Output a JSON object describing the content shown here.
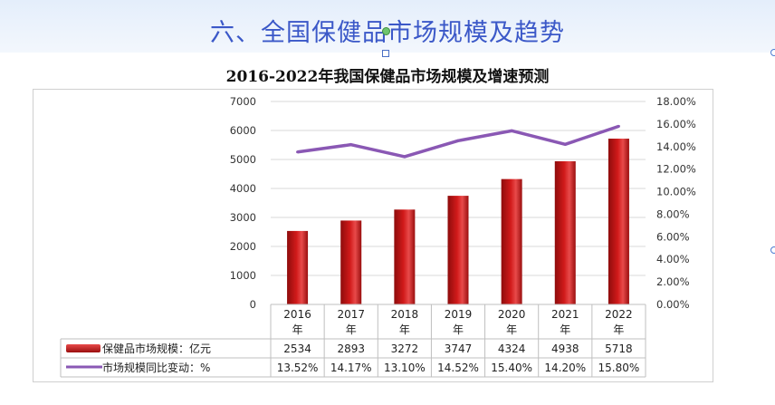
{
  "slide": {
    "title": "六、全国保健品市场规模及趋势"
  },
  "chart_data": {
    "type": "bar",
    "title": "2016-2022年我国保健品市场规模及增速预测",
    "categories": [
      "2016年",
      "2017年",
      "2018年",
      "2019年",
      "2020年",
      "2021年",
      "2022年"
    ],
    "category_lines": [
      [
        "2016",
        "年"
      ],
      [
        "2017",
        "年"
      ],
      [
        "2018",
        "年"
      ],
      [
        "2019",
        "年"
      ],
      [
        "2020",
        "年"
      ],
      [
        "2021",
        "年"
      ],
      [
        "2022",
        "年"
      ]
    ],
    "y_left": {
      "ylim": [
        0,
        7000
      ],
      "ticks": [
        "0",
        "1000",
        "2000",
        "3000",
        "4000",
        "5000",
        "6000",
        "7000"
      ]
    },
    "y_right": {
      "ylim": [
        0,
        18
      ],
      "ticks": [
        "0.00%",
        "2.00%",
        "4.00%",
        "6.00%",
        "8.00%",
        "10.00%",
        "12.00%",
        "14.00%",
        "16.00%",
        "18.00%"
      ]
    },
    "series": [
      {
        "name": "保健品市场规模：亿元",
        "type": "bar",
        "axis": "left",
        "values": [
          2534,
          2893,
          3272,
          3747,
          4324,
          4938,
          5718
        ],
        "labels": [
          "2534",
          "2893",
          "3272",
          "3747",
          "4324",
          "4938",
          "5718"
        ]
      },
      {
        "name": "市场规模同比变动：%",
        "type": "line",
        "axis": "right",
        "values": [
          13.52,
          14.17,
          13.1,
          14.52,
          15.4,
          14.2,
          15.8
        ],
        "labels": [
          "13.52%",
          "14.17%",
          "13.10%",
          "14.52%",
          "15.40%",
          "14.20%",
          "15.80%"
        ]
      }
    ],
    "colors": {
      "bar": "#d11a1a",
      "line": "#8a58b4",
      "grid": "#d9d9d9",
      "table_border": "#bfbfbf"
    },
    "grid": true,
    "legend": "data-table-bottom"
  }
}
